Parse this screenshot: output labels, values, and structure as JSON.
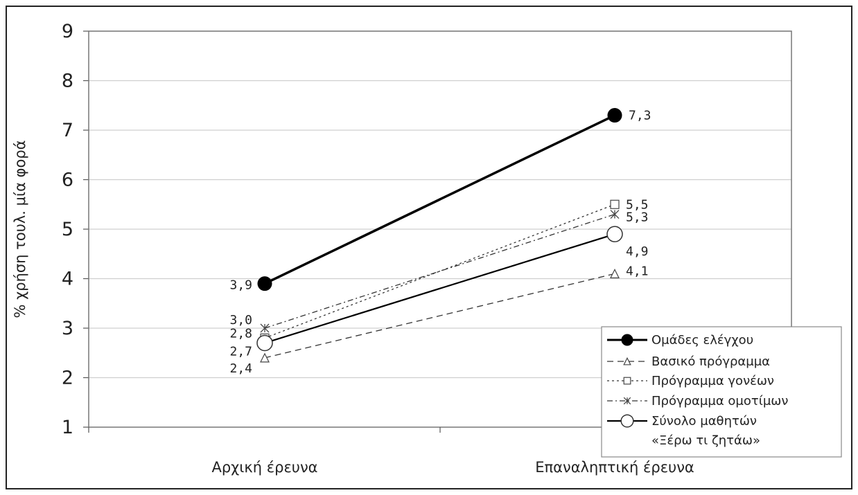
{
  "chart_data": {
    "type": "line",
    "ylabel": "% χρήση τουλ. μία φορά",
    "xlabel": "",
    "ylim": [
      1,
      9
    ],
    "yticks": [
      "1",
      "2",
      "3",
      "4",
      "5",
      "6",
      "7",
      "8",
      "9"
    ],
    "categories": [
      "Αρχική έρευνα",
      "Επαναληπτική έρευνα"
    ],
    "grid": true,
    "legend_position": "bottom-right",
    "series": [
      {
        "name": "Ομάδες ελέγχου",
        "values": [
          3.9,
          7.3
        ],
        "labels": [
          "3,9",
          "7,3"
        ],
        "marker": "filled-circle",
        "dash": "solid",
        "stroke_width": 3.5,
        "color": "#000000"
      },
      {
        "name": "Βασικό πρόγραμμα",
        "values": [
          2.4,
          4.1
        ],
        "labels": [
          "2,4",
          "4,1"
        ],
        "marker": "triangle",
        "dash": "long-dash",
        "stroke_width": 1.3,
        "color": "#333333"
      },
      {
        "name": "Πρόγραμμα γονέων",
        "values": [
          2.8,
          5.5
        ],
        "labels": [
          "2,8",
          "5,5"
        ],
        "marker": "square",
        "dash": "dotted",
        "stroke_width": 1.3,
        "color": "#333333"
      },
      {
        "name": "Πρόγραμμα ομοτίμων",
        "values": [
          3.0,
          5.3
        ],
        "labels": [
          "3,0",
          "5,3"
        ],
        "marker": "star",
        "dash": "dash-dot",
        "stroke_width": 1.3,
        "color": "#333333"
      },
      {
        "name": "Σύνολο μαθητών «Ξέρω τι ζητάω»",
        "legend_lines": [
          "Σύνολο μαθητών",
          "«Ξέρω τι ζητάω»"
        ],
        "values": [
          2.7,
          4.9
        ],
        "labels": [
          "2,7",
          "4,9"
        ],
        "marker": "open-circle",
        "dash": "solid",
        "stroke_width": 2.2,
        "color": "#000000"
      }
    ]
  }
}
